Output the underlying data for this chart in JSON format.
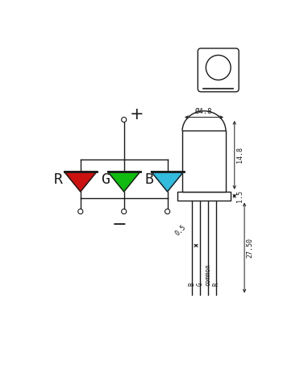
{
  "bg_color": "#ffffff",
  "line_color": "#1a1a1a",
  "dim_phi": "Ø4.8",
  "dim_14_8": "14.8",
  "dim_1_5": "1.5",
  "dim_27_50": "27.50",
  "dim_0_5": "0.5",
  "pin_labels": [
    "B",
    "G",
    "common",
    "R"
  ],
  "led_colors": [
    "#cc1111",
    "#11bb11",
    "#33bbdd"
  ],
  "led_labels": [
    "R",
    "G",
    "B"
  ]
}
